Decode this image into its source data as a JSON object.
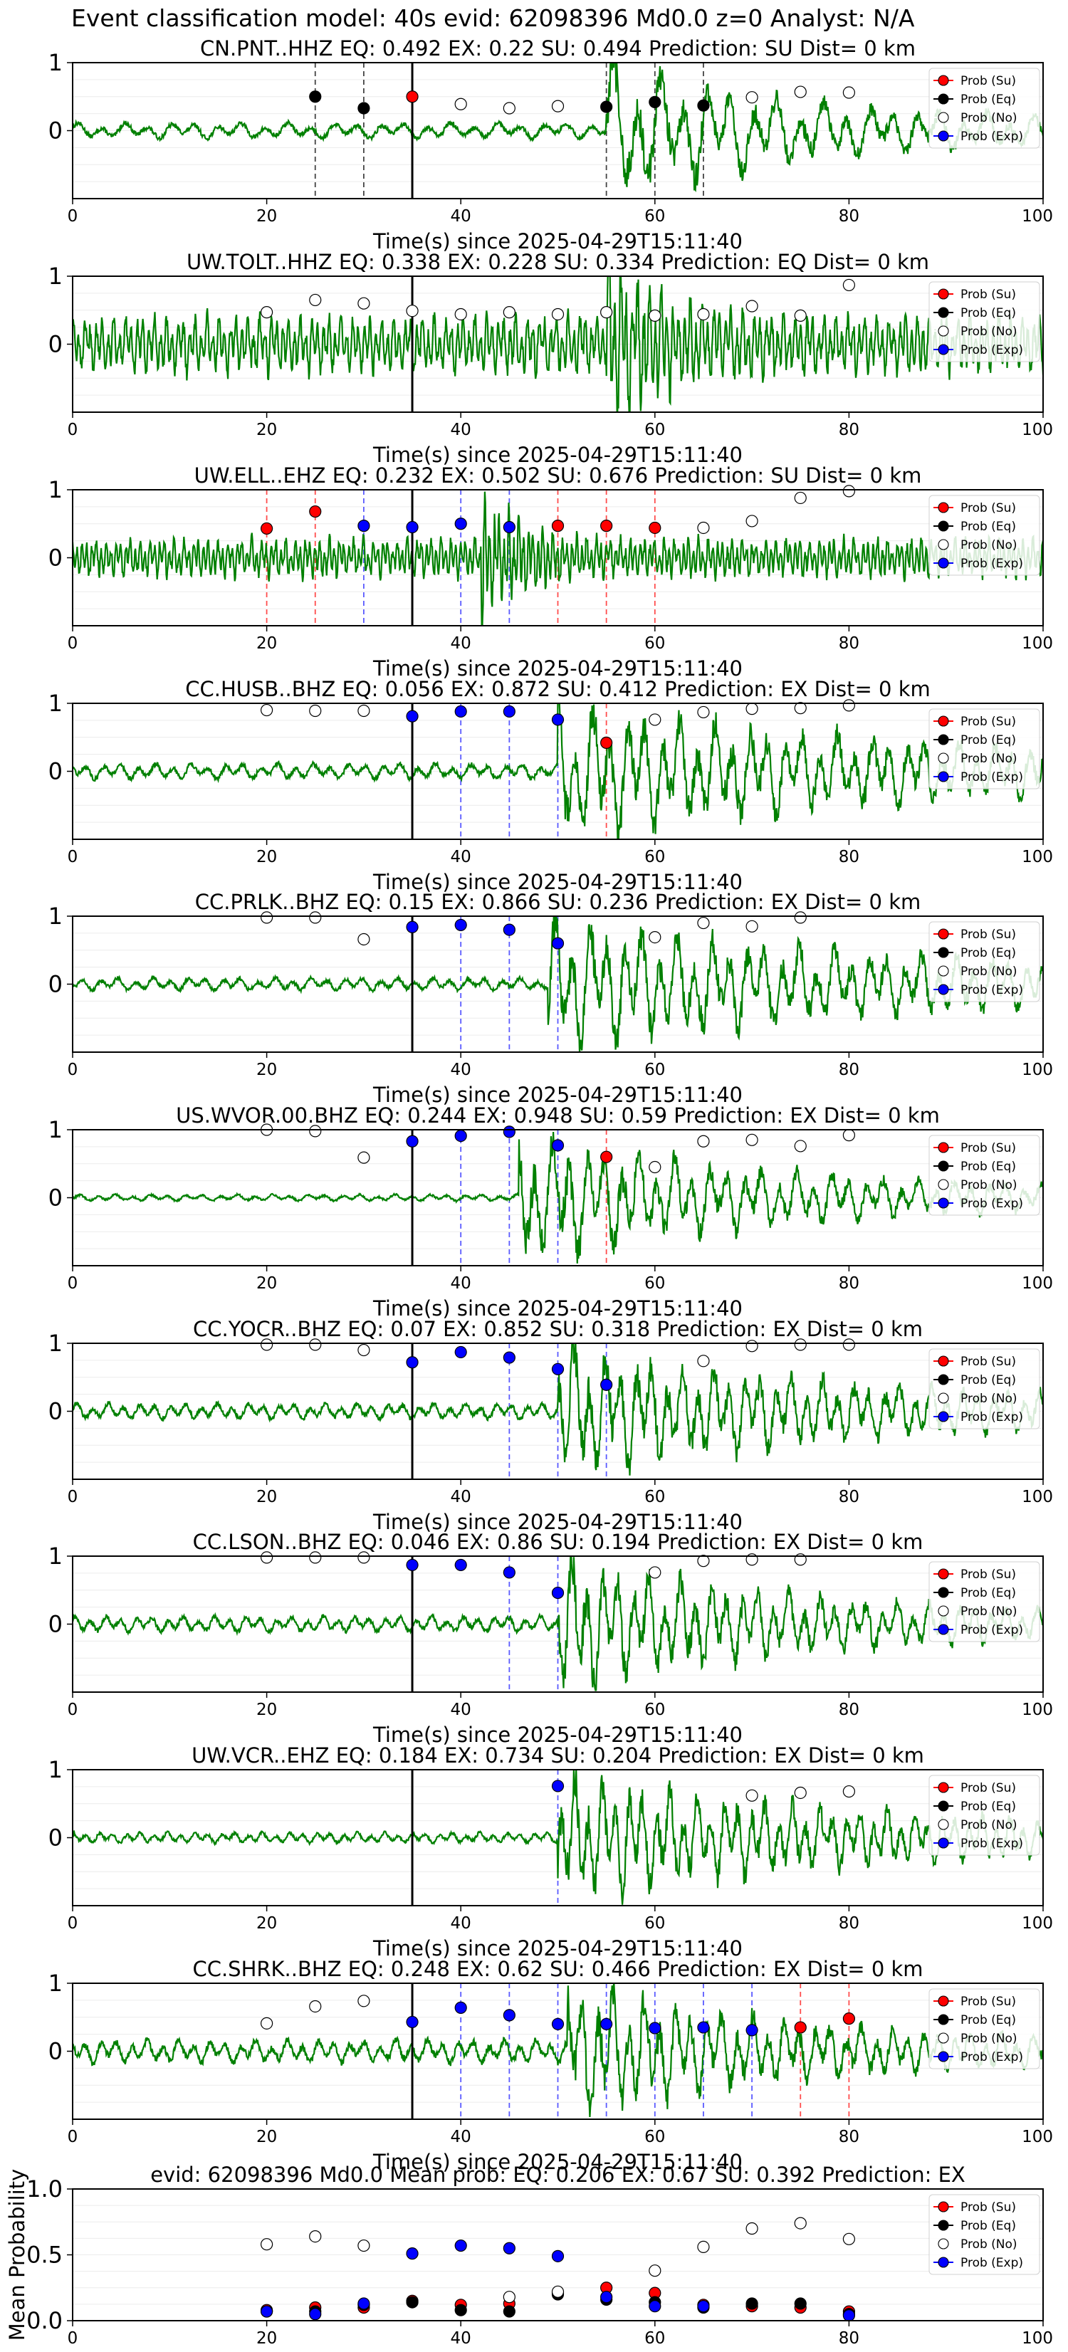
{
  "figure": {
    "title": "Event classification model: 40s evid: 62098396 Md0.0 z=0 Analyst: N/A"
  },
  "legend": {
    "entries": [
      {
        "label": "Prob (Su)",
        "color": "#ff0000",
        "filled": true
      },
      {
        "label": "Prob (Eq)",
        "color": "#000000",
        "filled": true
      },
      {
        "label": "Prob (No)",
        "color": "#ffffff",
        "filled": false
      },
      {
        "label": "Prob (Exp)",
        "color": "#0000ff",
        "filled": true
      }
    ],
    "placement": "upper right"
  },
  "chart_data": [
    {
      "type": "line",
      "title": "CN.PNT..HHZ   EQ: 0.492  EX: 0.22  SU: 0.494   Prediction: SU    Dist= 0 km",
      "xlabel": "Time(s) since 2025-04-29T15:11:40",
      "ylabel": "",
      "xlim": [
        0,
        100
      ],
      "ylim": [
        -1,
        1
      ],
      "xticks": [
        0,
        20,
        40,
        60,
        80,
        100
      ],
      "yticks": [
        0,
        1
      ],
      "waveform": {
        "color": "#008000",
        "noise": 0.12,
        "onset": 55,
        "peak": 0.95,
        "decay": 22,
        "period": 2.4
      },
      "pick_time": 35,
      "windows": [
        {
          "x": 25,
          "class": "eq"
        },
        {
          "x": 30,
          "class": "eq"
        },
        {
          "x": 55,
          "class": "eq"
        },
        {
          "x": 60,
          "class": "eq"
        },
        {
          "x": 65,
          "class": "eq"
        }
      ],
      "probabilities": {
        "su": {
          "x": [
            35
          ],
          "y": [
            0.5
          ]
        },
        "eq": {
          "x": [
            25,
            30,
            55,
            60,
            65
          ],
          "y": [
            0.5,
            0.33,
            0.35,
            0.42,
            0.37
          ]
        },
        "no": {
          "x": [
            40,
            45,
            50,
            70,
            75,
            80
          ],
          "y": [
            0.39,
            0.33,
            0.36,
            0.49,
            0.57,
            0.56
          ]
        },
        "exp": {
          "x": [],
          "y": []
        }
      }
    },
    {
      "type": "line",
      "title": "UW.TOLT..HHZ   EQ: 0.338  EX: 0.228  SU: 0.334   Prediction: EQ    Dist= 0 km",
      "xlabel": "Time(s) since 2025-04-29T15:11:40",
      "ylabel": "",
      "xlim": [
        0,
        100
      ],
      "ylim": [
        -1,
        1
      ],
      "xticks": [
        0,
        20,
        40,
        60,
        80,
        100
      ],
      "yticks": [
        0,
        1
      ],
      "waveform": {
        "color": "#008000",
        "noise": 0.45,
        "onset": 55,
        "peak": 1.0,
        "decay": 6,
        "period": 0.6
      },
      "pick_time": 35,
      "windows": [],
      "probabilities": {
        "su": {
          "x": [],
          "y": []
        },
        "eq": {
          "x": [],
          "y": []
        },
        "no": {
          "x": [
            20,
            25,
            30,
            35,
            40,
            45,
            50,
            55,
            60,
            65,
            70,
            75,
            80
          ],
          "y": [
            0.47,
            0.65,
            0.6,
            0.49,
            0.44,
            0.47,
            0.44,
            0.47,
            0.42,
            0.44,
            0.56,
            0.42,
            0.87
          ]
        },
        "exp": {
          "x": [],
          "y": []
        }
      }
    },
    {
      "type": "line",
      "title": "UW.ELL..EHZ   EQ: 0.232  EX: 0.502  SU: 0.676   Prediction: SU    Dist= 0 km",
      "xlabel": "Time(s) since 2025-04-29T15:11:40",
      "ylabel": "",
      "xlim": [
        0,
        100
      ],
      "ylim": [
        -1,
        1
      ],
      "xticks": [
        0,
        20,
        40,
        60,
        80,
        100
      ],
      "yticks": [
        0,
        1
      ],
      "waveform": {
        "color": "#008000",
        "noise": 0.3,
        "onset": 42,
        "peak": 0.95,
        "decay": 4,
        "period": 0.5
      },
      "pick_time": 35,
      "windows": [
        {
          "x": 20,
          "class": "su"
        },
        {
          "x": 25,
          "class": "su"
        },
        {
          "x": 30,
          "class": "exp"
        },
        {
          "x": 40,
          "class": "exp"
        },
        {
          "x": 45,
          "class": "exp"
        },
        {
          "x": 50,
          "class": "su"
        },
        {
          "x": 55,
          "class": "su"
        },
        {
          "x": 60,
          "class": "su"
        }
      ],
      "probabilities": {
        "su": {
          "x": [
            20,
            25,
            50,
            55,
            60
          ],
          "y": [
            0.43,
            0.68,
            0.47,
            0.47,
            0.44
          ]
        },
        "eq": {
          "x": [],
          "y": []
        },
        "no": {
          "x": [
            65,
            70,
            75,
            80
          ],
          "y": [
            0.44,
            0.54,
            0.88,
            0.98
          ]
        },
        "exp": {
          "x": [
            30,
            35,
            40,
            45
          ],
          "y": [
            0.47,
            0.45,
            0.5,
            0.45
          ]
        }
      }
    },
    {
      "type": "line",
      "title": "CC.HUSB..BHZ   EQ: 0.056  EX: 0.872  SU: 0.412   Prediction: EX    Dist= 0 km",
      "xlabel": "Time(s) since 2025-04-29T15:11:40",
      "ylabel": "",
      "xlim": [
        0,
        100
      ],
      "ylim": [
        -1,
        1
      ],
      "xticks": [
        0,
        20,
        40,
        60,
        80,
        100
      ],
      "yticks": [
        0,
        1
      ],
      "waveform": {
        "color": "#008000",
        "noise": 0.12,
        "onset": 50,
        "peak": 0.95,
        "decay": 40,
        "period": 1.8
      },
      "pick_time": 35,
      "windows": [
        {
          "x": 40,
          "class": "exp"
        },
        {
          "x": 45,
          "class": "exp"
        },
        {
          "x": 50,
          "class": "exp"
        },
        {
          "x": 55,
          "class": "su"
        }
      ],
      "probabilities": {
        "su": {
          "x": [
            55
          ],
          "y": [
            0.42
          ]
        },
        "eq": {
          "x": [],
          "y": []
        },
        "no": {
          "x": [
            20,
            25,
            30,
            60,
            65,
            70,
            75,
            80
          ],
          "y": [
            0.9,
            0.89,
            0.89,
            0.76,
            0.87,
            0.92,
            0.93,
            0.97
          ]
        },
        "exp": {
          "x": [
            35,
            40,
            45,
            50
          ],
          "y": [
            0.81,
            0.88,
            0.88,
            0.76
          ]
        }
      }
    },
    {
      "type": "line",
      "title": "CC.PRLK..BHZ   EQ: 0.15  EX: 0.866  SU: 0.236   Prediction: EX    Dist= 0 km",
      "xlabel": "Time(s) since 2025-04-29T15:11:40",
      "ylabel": "",
      "xlim": [
        0,
        100
      ],
      "ylim": [
        -1,
        1
      ],
      "xticks": [
        0,
        20,
        40,
        60,
        80,
        100
      ],
      "yticks": [
        0,
        1
      ],
      "waveform": {
        "color": "#008000",
        "noise": 0.1,
        "onset": 49,
        "peak": 0.95,
        "decay": 40,
        "period": 1.8
      },
      "pick_time": 35,
      "windows": [
        {
          "x": 40,
          "class": "exp"
        },
        {
          "x": 45,
          "class": "exp"
        },
        {
          "x": 50,
          "class": "exp"
        }
      ],
      "probabilities": {
        "su": {
          "x": [],
          "y": []
        },
        "eq": {
          "x": [],
          "y": []
        },
        "no": {
          "x": [
            20,
            25,
            30,
            60,
            65,
            70,
            75
          ],
          "y": [
            0.98,
            0.98,
            0.66,
            0.69,
            0.9,
            0.85,
            0.98
          ]
        },
        "exp": {
          "x": [
            35,
            40,
            45,
            50
          ],
          "y": [
            0.84,
            0.87,
            0.8,
            0.6
          ]
        }
      }
    },
    {
      "type": "line",
      "title": "US.WVOR.00.BHZ   EQ: 0.244  EX: 0.948  SU: 0.59   Prediction: EX    Dist= 0 km",
      "xlabel": "Time(s) since 2025-04-29T15:11:40",
      "ylabel": "",
      "xlim": [
        0,
        100
      ],
      "ylim": [
        -1,
        1
      ],
      "xticks": [
        0,
        20,
        40,
        60,
        80,
        100
      ],
      "yticks": [
        0,
        1
      ],
      "waveform": {
        "color": "#008000",
        "noise": 0.05,
        "onset": 46,
        "peak": 0.95,
        "decay": 30,
        "period": 1.8
      },
      "pick_time": 35,
      "windows": [
        {
          "x": 40,
          "class": "exp"
        },
        {
          "x": 45,
          "class": "exp"
        },
        {
          "x": 50,
          "class": "exp"
        },
        {
          "x": 55,
          "class": "su"
        }
      ],
      "probabilities": {
        "su": {
          "x": [
            55
          ],
          "y": [
            0.6
          ]
        },
        "eq": {
          "x": [],
          "y": []
        },
        "no": {
          "x": [
            20,
            25,
            30,
            60,
            65,
            70,
            75,
            80
          ],
          "y": [
            1.0,
            0.98,
            0.59,
            0.45,
            0.83,
            0.85,
            0.76,
            0.92
          ]
        },
        "exp": {
          "x": [
            35,
            40,
            45,
            50
          ],
          "y": [
            0.83,
            0.91,
            0.97,
            0.77
          ]
        }
      }
    },
    {
      "type": "line",
      "title": "CC.YOCR..BHZ   EQ: 0.07  EX: 0.852  SU: 0.318   Prediction: EX    Dist= 0 km",
      "xlabel": "Time(s) since 2025-04-29T15:11:40",
      "ylabel": "",
      "xlim": [
        0,
        100
      ],
      "ylim": [
        -1,
        1
      ],
      "xticks": [
        0,
        20,
        40,
        60,
        80,
        100
      ],
      "yticks": [
        0,
        1
      ],
      "waveform": {
        "color": "#008000",
        "noise": 0.12,
        "onset": 50,
        "peak": 0.95,
        "decay": 30,
        "period": 1.6
      },
      "pick_time": 35,
      "windows": [
        {
          "x": 45,
          "class": "exp"
        },
        {
          "x": 50,
          "class": "exp"
        },
        {
          "x": 55,
          "class": "exp"
        }
      ],
      "probabilities": {
        "su": {
          "x": [],
          "y": []
        },
        "eq": {
          "x": [],
          "y": []
        },
        "no": {
          "x": [
            20,
            25,
            30,
            65,
            70,
            75,
            80
          ],
          "y": [
            0.98,
            0.98,
            0.9,
            0.74,
            0.96,
            0.98,
            0.98
          ]
        },
        "exp": {
          "x": [
            35,
            40,
            45,
            50,
            55
          ],
          "y": [
            0.72,
            0.87,
            0.79,
            0.62,
            0.39
          ]
        }
      }
    },
    {
      "type": "line",
      "title": "CC.LSON..BHZ   EQ: 0.046  EX: 0.86  SU: 0.194   Prediction: EX    Dist= 0 km",
      "xlabel": "Time(s) since 2025-04-29T15:11:40",
      "ylabel": "",
      "xlim": [
        0,
        100
      ],
      "ylim": [
        -1,
        1
      ],
      "xticks": [
        0,
        20,
        40,
        60,
        80,
        100
      ],
      "yticks": [
        0,
        1
      ],
      "waveform": {
        "color": "#008000",
        "noise": 0.12,
        "onset": 50,
        "peak": 0.95,
        "decay": 25,
        "period": 1.6
      },
      "pick_time": 35,
      "windows": [
        {
          "x": 45,
          "class": "exp"
        },
        {
          "x": 50,
          "class": "exp"
        }
      ],
      "probabilities": {
        "su": {
          "x": [],
          "y": []
        },
        "eq": {
          "x": [],
          "y": []
        },
        "no": {
          "x": [
            20,
            25,
            30,
            60,
            65,
            70,
            75
          ],
          "y": [
            0.98,
            0.98,
            0.98,
            0.76,
            0.93,
            0.95,
            0.95
          ]
        },
        "exp": {
          "x": [
            35,
            40,
            45,
            50
          ],
          "y": [
            0.87,
            0.87,
            0.76,
            0.46
          ]
        }
      }
    },
    {
      "type": "line",
      "title": "UW.VCR..EHZ   EQ: 0.184  EX: 0.734  SU: 0.204   Prediction: EX    Dist= 0 km",
      "xlabel": "Time(s) since 2025-04-29T15:11:40",
      "ylabel": "",
      "xlim": [
        0,
        100
      ],
      "ylim": [
        -1,
        1
      ],
      "xticks": [
        0,
        20,
        40,
        60,
        80,
        100
      ],
      "yticks": [
        0,
        1
      ],
      "waveform": {
        "color": "#008000",
        "noise": 0.08,
        "onset": 50,
        "peak": 0.9,
        "decay": 35,
        "period": 1.4
      },
      "pick_time": 35,
      "windows": [
        {
          "x": 50,
          "class": "exp"
        }
      ],
      "probabilities": {
        "su": {
          "x": [],
          "y": []
        },
        "eq": {
          "x": [],
          "y": []
        },
        "no": {
          "x": [
            70,
            75,
            80
          ],
          "y": [
            0.62,
            0.66,
            0.68
          ]
        },
        "exp": {
          "x": [
            50
          ],
          "y": [
            0.76
          ]
        }
      }
    },
    {
      "type": "line",
      "title": "CC.SHRK..BHZ   EQ: 0.248  EX: 0.62  SU: 0.466   Prediction: EX    Dist= 0 km",
      "xlabel": "Time(s) since 2025-04-29T15:11:40",
      "ylabel": "",
      "xlim": [
        0,
        100
      ],
      "ylim": [
        -1,
        1
      ],
      "xticks": [
        0,
        20,
        40,
        60,
        80,
        100
      ],
      "yticks": [
        0,
        1
      ],
      "waveform": {
        "color": "#008000",
        "noise": 0.18,
        "onset": 51,
        "peak": 0.95,
        "decay": 20,
        "period": 1.6
      },
      "pick_time": 35,
      "windows": [
        {
          "x": 40,
          "class": "exp"
        },
        {
          "x": 45,
          "class": "exp"
        },
        {
          "x": 50,
          "class": "exp"
        },
        {
          "x": 55,
          "class": "exp"
        },
        {
          "x": 60,
          "class": "exp"
        },
        {
          "x": 65,
          "class": "exp"
        },
        {
          "x": 70,
          "class": "exp"
        },
        {
          "x": 75,
          "class": "su"
        },
        {
          "x": 80,
          "class": "su"
        }
      ],
      "probabilities": {
        "su": {
          "x": [
            75,
            80
          ],
          "y": [
            0.35,
            0.48
          ]
        },
        "eq": {
          "x": [],
          "y": []
        },
        "no": {
          "x": [
            20,
            25,
            30
          ],
          "y": [
            0.41,
            0.66,
            0.74
          ]
        },
        "exp": {
          "x": [
            35,
            40,
            45,
            50,
            55,
            60,
            65,
            70
          ],
          "y": [
            0.43,
            0.64,
            0.53,
            0.4,
            0.4,
            0.34,
            0.35,
            0.31
          ]
        }
      }
    },
    {
      "type": "scatter",
      "title": "evid: 62098396  Md0.0   Mean prob:   EQ: 0.206  EX: 0.67  SU: 0.392   Prediction: EX",
      "xlabel": "",
      "ylabel": "Mean Probability",
      "xlim": [
        0,
        100
      ],
      "ylim": [
        0,
        1
      ],
      "xticks": [
        0,
        20,
        40,
        60,
        80,
        100
      ],
      "yticks": [
        0.0,
        0.5,
        1.0
      ],
      "probabilities": {
        "no": {
          "x": [
            20,
            25,
            30,
            45,
            50,
            60,
            65,
            70,
            75,
            80
          ],
          "y": [
            0.58,
            0.64,
            0.57,
            0.18,
            0.22,
            0.38,
            0.56,
            0.7,
            0.74,
            0.62
          ]
        },
        "su": {
          "x": [
            20,
            25,
            30,
            35,
            40,
            45,
            50,
            55,
            60,
            65,
            70,
            75,
            80
          ],
          "y": [
            0.08,
            0.1,
            0.1,
            0.15,
            0.12,
            0.13,
            0.21,
            0.25,
            0.21,
            0.12,
            0.11,
            0.1,
            0.07
          ]
        },
        "eq": {
          "x": [
            20,
            25,
            30,
            35,
            40,
            45,
            50,
            55,
            60,
            65,
            70,
            75,
            80
          ],
          "y": [
            0.07,
            0.07,
            0.12,
            0.14,
            0.08,
            0.07,
            0.2,
            0.16,
            0.14,
            0.1,
            0.13,
            0.13,
            0.05
          ]
        },
        "exp": {
          "x": [
            20,
            25,
            30,
            35,
            40,
            45,
            50,
            55,
            60,
            65,
            80
          ],
          "y": [
            0.07,
            0.05,
            0.13,
            0.51,
            0.57,
            0.55,
            0.49,
            0.18,
            0.11,
            0.11,
            0.04
          ]
        }
      }
    }
  ]
}
